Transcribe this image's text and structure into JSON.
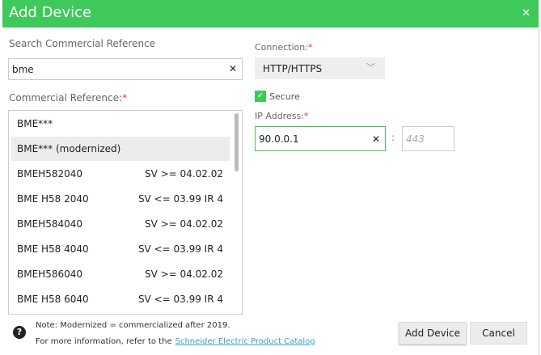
{
  "dialog": {
    "title": "Add Device",
    "close_icon": "close-icon"
  },
  "search": {
    "label": "Search Commercial Reference",
    "value": "bme"
  },
  "reference": {
    "label": "Commercial Reference:",
    "required": "*",
    "items": [
      {
        "name": "BME***",
        "sv": ""
      },
      {
        "name": "BME*** (modernized)",
        "sv": "",
        "selected": true
      },
      {
        "name": "BMEH582040",
        "sv": "SV >= 04.02.02"
      },
      {
        "name": "BME H58 2040",
        "sv": "SV <= 03.99 IR 4"
      },
      {
        "name": "BMEH584040",
        "sv": "SV >= 04.02.02"
      },
      {
        "name": "BME H58 4040",
        "sv": "SV <= 03.99 IR 4"
      },
      {
        "name": "BMEH586040",
        "sv": "SV >= 04.02.02"
      },
      {
        "name": "BME H58 6040",
        "sv": "SV <= 03.99 IR 4"
      }
    ]
  },
  "connection": {
    "label": "Connection:",
    "required": "*",
    "value": "HTTP/HTTPS"
  },
  "secure": {
    "label": "Secure",
    "checked": true
  },
  "ip": {
    "label": "IP Address:",
    "required": "*",
    "value": "90.0.0.1",
    "port_placeholder": "443",
    "separator": ":"
  },
  "footer": {
    "note": "Note: Modernized = commercialized after 2019.",
    "more": "For more information, refer to the",
    "link": "Schneider Electric Product Catalog",
    "add": "Add Device",
    "cancel": "Cancel"
  },
  "colors": {
    "accent": "#3ec95a",
    "link": "#3aa0c8"
  }
}
